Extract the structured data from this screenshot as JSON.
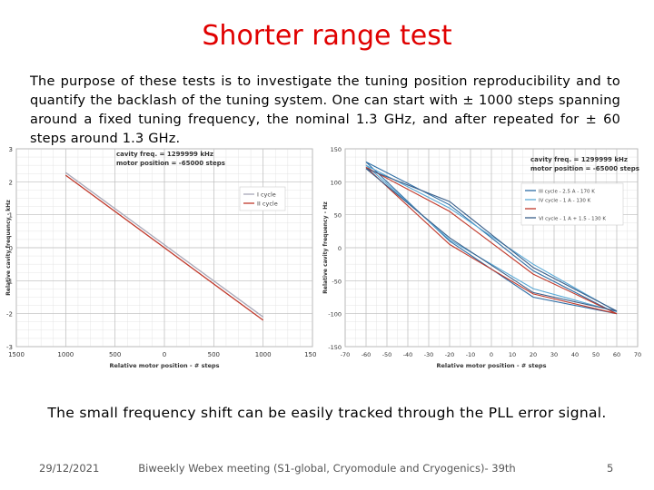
{
  "slide": {
    "title": "Shorter range test",
    "intro": "The purpose of these tests is to investigate the tuning position reproducibility and to quantify the backlash of the tuning system. One can start with ± 1000 steps spanning around a fixed tuning frequency, the nominal 1.3 GHz, and after repeated  for ± 60 steps around 1.3 GHz.",
    "bottom_note": "The small frequency shift can be easily tracked through the PLL error signal.",
    "footer": {
      "date": "29/12/2021",
      "center": "Biweekly Webex meeting (S1-global, Cryomodule and Cryogenics)- 39th",
      "page": "5"
    }
  },
  "chart_data": [
    {
      "type": "line",
      "title": "",
      "info_lines": [
        "cavity freq. = 1299999 kHz",
        "motor position = -65000 steps"
      ],
      "xlabel": "Relative motor position - # steps",
      "ylabel": "Relative cavity frequency - kHz",
      "xlim": [
        1500,
        -1500
      ],
      "ylim": [
        -3,
        3
      ],
      "x_ticks": [
        1500,
        1000,
        500,
        0,
        500,
        1000,
        1500
      ],
      "y_ticks": [
        3,
        2,
        1,
        0,
        -1,
        -2,
        -3
      ],
      "grid": true,
      "legend_position": "right",
      "series": [
        {
          "name": "I cycle",
          "color": "#a8a8b8",
          "x": [
            1000,
            -1000
          ],
          "y": [
            2.28,
            -2.1
          ]
        },
        {
          "name": "II cycle",
          "color": "#c0392b",
          "x": [
            1000,
            -1000
          ],
          "y": [
            2.2,
            -2.2
          ]
        }
      ]
    },
    {
      "type": "line",
      "title": "",
      "info_lines": [
        "cavity freq. = 1299999 kHz",
        "motor position = -65000 steps"
      ],
      "xlabel": "Relative motor position - # steps",
      "ylabel": "Relative cavity frequency - Hz",
      "xlim": [
        -70,
        70
      ],
      "ylim": [
        -150,
        150
      ],
      "x_ticks": [
        -70,
        -60,
        -50,
        -40,
        -30,
        -20,
        -10,
        0,
        10,
        20,
        30,
        40,
        50,
        60,
        70
      ],
      "y_ticks": [
        150,
        100,
        50,
        0,
        -50,
        -100,
        -150
      ],
      "grid": true,
      "legend_position": "top-right",
      "series": [
        {
          "name": "III cycle - 2.5 A - 170 K",
          "color": "#2e6da4",
          "x": [
            -60,
            -20,
            20,
            60,
            20,
            -20,
            -60
          ],
          "y": [
            130,
            65,
            -35,
            -100,
            -75,
            10,
            130
          ]
        },
        {
          "name": "IV cycle - 1 A - 130 K",
          "color": "#5aa9d6",
          "x": [
            -60,
            -20,
            20,
            60,
            20,
            -20,
            -60
          ],
          "y": [
            125,
            60,
            -25,
            -97,
            -62,
            12,
            125
          ]
        },
        {
          "name": "",
          "color": "#c0392b",
          "x": [
            -60,
            -20,
            20,
            60,
            20,
            -20,
            -60
          ],
          "y": [
            122,
            55,
            -40,
            -100,
            -70,
            5,
            122
          ]
        },
        {
          "name": "VI cycle - 1 A + 1.5 - 130 K",
          "color": "#3a5f8a",
          "x": [
            -60,
            -20,
            20,
            60,
            20,
            -20,
            -60
          ],
          "y": [
            120,
            70,
            -30,
            -96,
            -68,
            15,
            120
          ]
        }
      ]
    }
  ]
}
